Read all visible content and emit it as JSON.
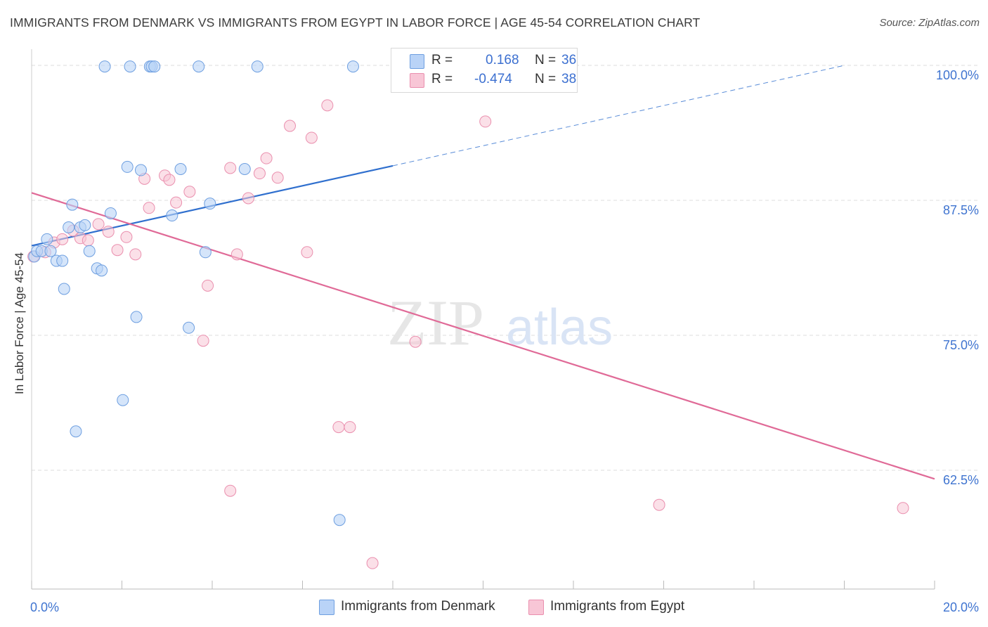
{
  "header": {
    "title": "IMMIGRANTS FROM DENMARK VS IMMIGRANTS FROM EGYPT IN LABOR FORCE | AGE 45-54 CORRELATION CHART",
    "source": "Source: ZipAtlas.com"
  },
  "legend": {
    "r_label": "R =",
    "n_label": "N =",
    "denmark": {
      "r": "0.168",
      "n": "36"
    },
    "egypt": {
      "r": "-0.474",
      "n": "38"
    }
  },
  "watermark": {
    "zip": "ZIP",
    "atlas": "atlas"
  },
  "colors": {
    "denmark_fill": "#b9d3f7",
    "denmark_stroke": "#6e9fe0",
    "denmark_line": "#2f6fce",
    "egypt_fill": "#f8c6d6",
    "egypt_stroke": "#ea8fae",
    "egypt_line": "#e06a97",
    "axis_text": "#3f74d0",
    "grid": "#dddddd"
  },
  "chart_data": {
    "type": "scatter",
    "title": "IMMIGRANTS FROM DENMARK VS IMMIGRANTS FROM EGYPT IN LABOR FORCE | AGE 45-54 CORRELATION CHART",
    "xlabel": "",
    "ylabel": "In Labor Force | Age 45-54",
    "xlim": [
      0,
      20
    ],
    "ylim": [
      51.5,
      101.5
    ],
    "x_tick_labels": [
      "0.0%",
      "20.0%"
    ],
    "y_ticks": [
      62.5,
      75.0,
      87.5,
      100.0
    ],
    "y_tick_labels": [
      "62.5%",
      "75.0%",
      "87.5%",
      "100.0%"
    ],
    "grid": true,
    "legend_position": "bottom",
    "series": [
      {
        "name": "Immigrants from Denmark",
        "r": 0.168,
        "n": 36,
        "trend": {
          "x0": 0.0,
          "y0": 83.3,
          "x1": 8.0,
          "y1": 90.7,
          "dash_to_x": 18.0,
          "dash_to_y": 100.0
        },
        "points": [
          [
            0.06,
            82.3
          ],
          [
            0.12,
            82.8
          ],
          [
            0.22,
            82.8
          ],
          [
            0.34,
            83.9
          ],
          [
            0.42,
            82.8
          ],
          [
            0.55,
            81.9
          ],
          [
            0.68,
            81.9
          ],
          [
            0.72,
            79.3
          ],
          [
            0.82,
            85.0
          ],
          [
            0.9,
            87.1
          ],
          [
            0.98,
            66.1
          ],
          [
            1.08,
            85.0
          ],
          [
            1.18,
            85.2
          ],
          [
            1.28,
            82.8
          ],
          [
            1.45,
            81.2
          ],
          [
            1.55,
            81.0
          ],
          [
            1.62,
            99.9
          ],
          [
            1.75,
            86.3
          ],
          [
            2.02,
            69.0
          ],
          [
            2.12,
            90.6
          ],
          [
            2.18,
            99.9
          ],
          [
            2.32,
            76.7
          ],
          [
            2.42,
            90.3
          ],
          [
            2.62,
            99.9
          ],
          [
            2.66,
            99.9
          ],
          [
            2.72,
            99.9
          ],
          [
            3.11,
            86.1
          ],
          [
            3.3,
            90.4
          ],
          [
            3.48,
            75.7
          ],
          [
            3.7,
            99.9
          ],
          [
            3.85,
            82.7
          ],
          [
            3.95,
            87.2
          ],
          [
            4.72,
            90.4
          ],
          [
            5.0,
            99.9
          ],
          [
            6.82,
            57.9
          ],
          [
            7.12,
            99.9
          ]
        ]
      },
      {
        "name": "Immigrants from Egypt",
        "r": -0.474,
        "n": 38,
        "trend": {
          "x0": 0.0,
          "y0": 88.2,
          "x1": 20.0,
          "y1": 61.7
        },
        "points": [
          [
            0.04,
            82.3
          ],
          [
            0.3,
            82.7
          ],
          [
            0.5,
            83.6
          ],
          [
            0.68,
            83.9
          ],
          [
            0.92,
            84.7
          ],
          [
            1.08,
            84.0
          ],
          [
            1.25,
            83.8
          ],
          [
            1.48,
            85.3
          ],
          [
            1.7,
            84.6
          ],
          [
            1.9,
            82.9
          ],
          [
            2.1,
            84.1
          ],
          [
            2.3,
            82.5
          ],
          [
            2.5,
            89.5
          ],
          [
            2.6,
            86.8
          ],
          [
            2.95,
            89.8
          ],
          [
            3.05,
            89.4
          ],
          [
            3.2,
            87.3
          ],
          [
            3.5,
            88.3
          ],
          [
            3.8,
            74.5
          ],
          [
            3.9,
            79.6
          ],
          [
            4.4,
            90.5
          ],
          [
            4.4,
            60.6
          ],
          [
            4.55,
            82.5
          ],
          [
            4.8,
            87.7
          ],
          [
            5.05,
            90.0
          ],
          [
            5.2,
            91.4
          ],
          [
            5.45,
            89.6
          ],
          [
            5.72,
            94.4
          ],
          [
            6.1,
            82.7
          ],
          [
            6.2,
            93.3
          ],
          [
            6.55,
            96.3
          ],
          [
            6.8,
            66.5
          ],
          [
            7.05,
            66.5
          ],
          [
            7.55,
            53.9
          ],
          [
            8.5,
            74.4
          ],
          [
            10.05,
            94.8
          ],
          [
            13.9,
            59.3
          ],
          [
            19.3,
            59.0
          ]
        ]
      }
    ]
  },
  "bottom_legend": {
    "denmark": "Immigrants from Denmark",
    "egypt": "Immigrants from Egypt"
  }
}
